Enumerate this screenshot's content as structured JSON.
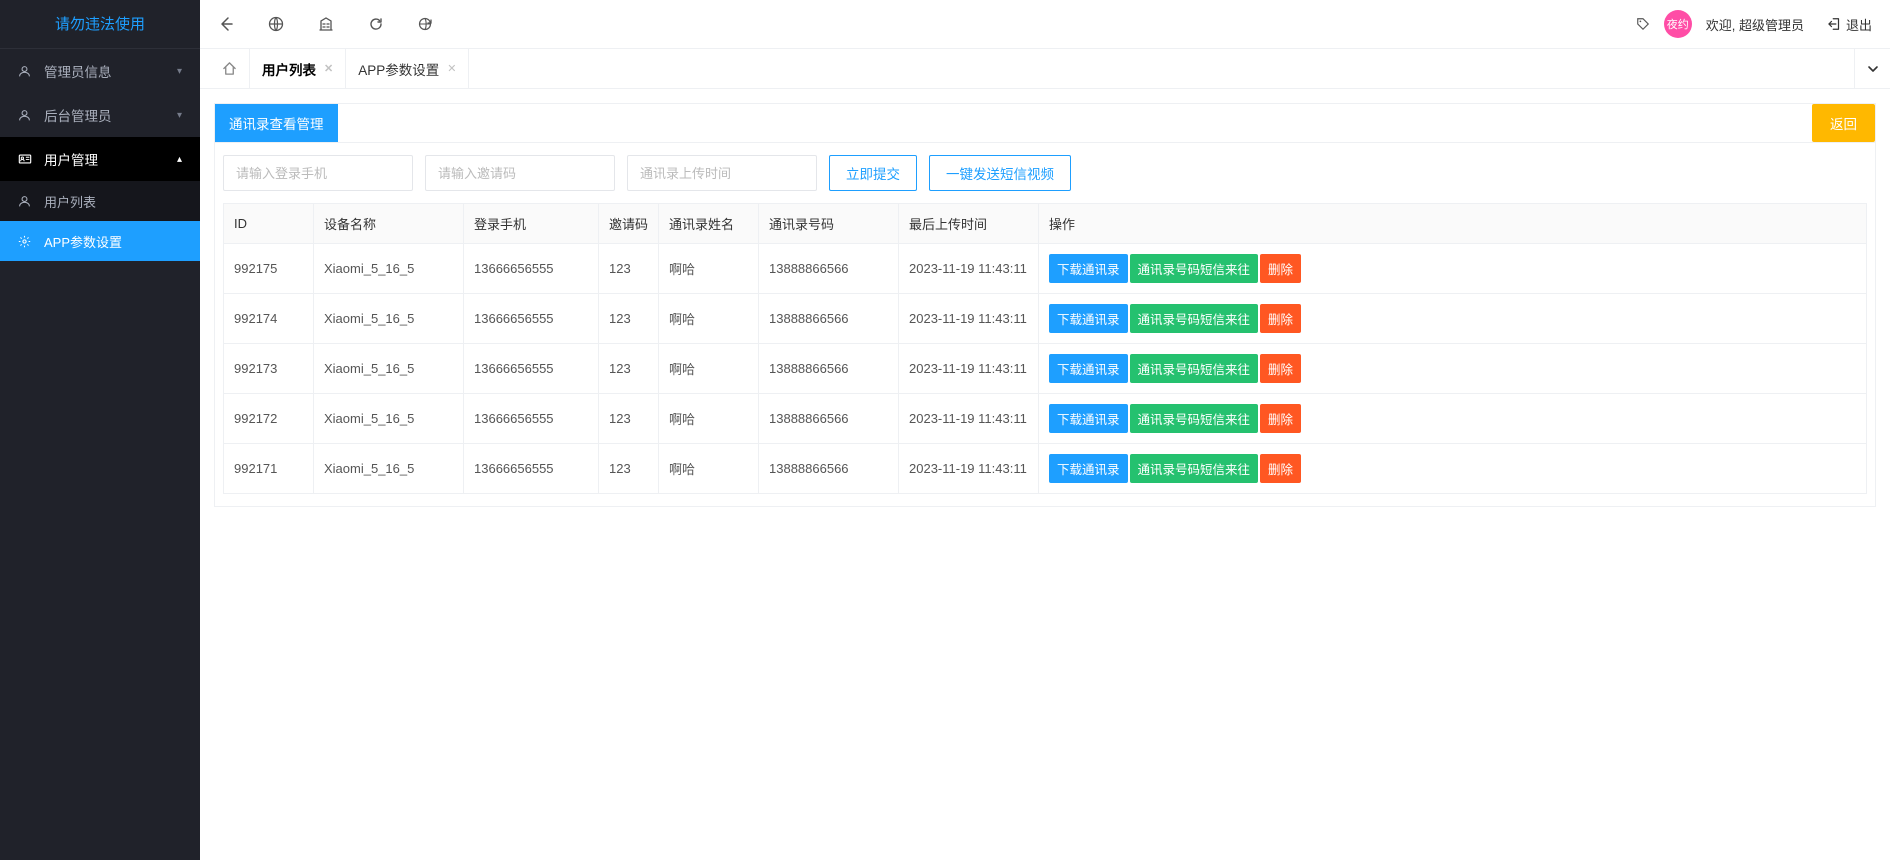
{
  "brand": "请勿违法使用",
  "sidebar": {
    "items": [
      {
        "label": "管理员信息",
        "icon": "user-icon",
        "expanded": false
      },
      {
        "label": "后台管理员",
        "icon": "user-icon",
        "expanded": false
      },
      {
        "label": "用户管理",
        "icon": "card-icon",
        "expanded": true,
        "active": true,
        "children": [
          {
            "label": "用户列表",
            "icon": "person-icon",
            "active": false
          },
          {
            "label": "APP参数设置",
            "icon": "gear-icon",
            "active": true
          }
        ]
      }
    ]
  },
  "topbar": {
    "avatar_text": "夜约",
    "welcome": "欢迎, 超级管理员",
    "logout": "退出"
  },
  "tabs": [
    {
      "label": "用户列表",
      "active": true,
      "closable": true
    },
    {
      "label": "APP参数设置",
      "active": false,
      "closable": true
    }
  ],
  "page": {
    "title": "通讯录查看管理",
    "back_label": "返回",
    "filters": {
      "phone_placeholder": "请输入登录手机",
      "invite_placeholder": "请输入邀请码",
      "upload_time_placeholder": "通讯录上传时间",
      "submit_label": "立即提交",
      "send_sms_label": "一键发送短信视频"
    },
    "table": {
      "columns": [
        "ID",
        "设备名称",
        "登录手机",
        "邀请码",
        "通讯录姓名",
        "通讯录号码",
        "最后上传时间",
        "操作"
      ],
      "col_widths": [
        "90px",
        "150px",
        "135px",
        "60px",
        "100px",
        "140px",
        "140px",
        ""
      ],
      "action_labels": {
        "download": "下载通讯录",
        "sms": "通讯录号码短信来往",
        "delete": "删除"
      },
      "rows": [
        {
          "id": "992175",
          "device": "Xiaomi_5_16_5",
          "phone": "13666656555",
          "invite": "123",
          "name": "啊哈",
          "contact": "13888866566",
          "time": "2023-11-19 11:43:11"
        },
        {
          "id": "992174",
          "device": "Xiaomi_5_16_5",
          "phone": "13666656555",
          "invite": "123",
          "name": "啊哈",
          "contact": "13888866566",
          "time": "2023-11-19 11:43:11"
        },
        {
          "id": "992173",
          "device": "Xiaomi_5_16_5",
          "phone": "13666656555",
          "invite": "123",
          "name": "啊哈",
          "contact": "13888866566",
          "time": "2023-11-19 11:43:11"
        },
        {
          "id": "992172",
          "device": "Xiaomi_5_16_5",
          "phone": "13666656555",
          "invite": "123",
          "name": "啊哈",
          "contact": "13888866566",
          "time": "2023-11-19 11:43:11"
        },
        {
          "id": "992171",
          "device": "Xiaomi_5_16_5",
          "phone": "13666656555",
          "invite": "123",
          "name": "啊哈",
          "contact": "13888866566",
          "time": "2023-11-19 11:43:11"
        }
      ]
    }
  },
  "colors": {
    "primary": "#1e9fff",
    "success": "#25c16f",
    "danger": "#ff5722",
    "warning": "#ffb800"
  }
}
